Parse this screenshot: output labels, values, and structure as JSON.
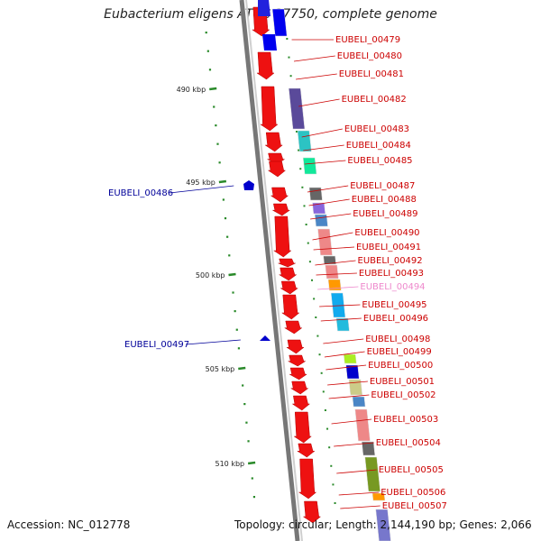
{
  "title": "Eubacterium eligens ATCC 27750, complete genome",
  "footer": {
    "accession": "Accession: NC_012778",
    "topology": "Topology: circular; Length: 2,144,190 bp; Genes: 2,066"
  },
  "colors": {
    "forward_gene": "#ee1111",
    "reverse_gene": "#0000cc",
    "tick": "#2a8a2a",
    "backbone": "#888888",
    "label_forward": "#cc0000",
    "label_reverse": "#000099",
    "label_highlight": "#ee88cc"
  },
  "ticks": [
    {
      "label": "490 kbp"
    },
    {
      "label": "495 kbp"
    },
    {
      "label": "500 kbp"
    },
    {
      "label": "505 kbp"
    },
    {
      "label": "510 kbp"
    }
  ],
  "genes_reverse": [
    {
      "label": "EUBELI_00486"
    },
    {
      "label": "EUBELI_00497"
    }
  ],
  "genes_forward": [
    {
      "label": "EUBELI_00479"
    },
    {
      "label": "EUBELI_00480"
    },
    {
      "label": "EUBELI_00481"
    },
    {
      "label": "EUBELI_00482"
    },
    {
      "label": "EUBELI_00483"
    },
    {
      "label": "EUBELI_00484"
    },
    {
      "label": "EUBELI_00485"
    },
    {
      "label": "EUBELI_00487"
    },
    {
      "label": "EUBELI_00488"
    },
    {
      "label": "EUBELI_00489"
    },
    {
      "label": "EUBELI_00490"
    },
    {
      "label": "EUBELI_00491"
    },
    {
      "label": "EUBELI_00492"
    },
    {
      "label": "EUBELI_00493"
    },
    {
      "label": "EUBELI_00494"
    },
    {
      "label": "EUBELI_00495"
    },
    {
      "label": "EUBELI_00496"
    },
    {
      "label": "EUBELI_00498"
    },
    {
      "label": "EUBELI_00499"
    },
    {
      "label": "EUBELI_00500"
    },
    {
      "label": "EUBELI_00501"
    },
    {
      "label": "EUBELI_00502"
    },
    {
      "label": "EUBELI_00503"
    },
    {
      "label": "EUBELI_00504"
    },
    {
      "label": "EUBELI_00505"
    },
    {
      "label": "EUBELI_00506"
    },
    {
      "label": "EUBELI_00507"
    }
  ]
}
